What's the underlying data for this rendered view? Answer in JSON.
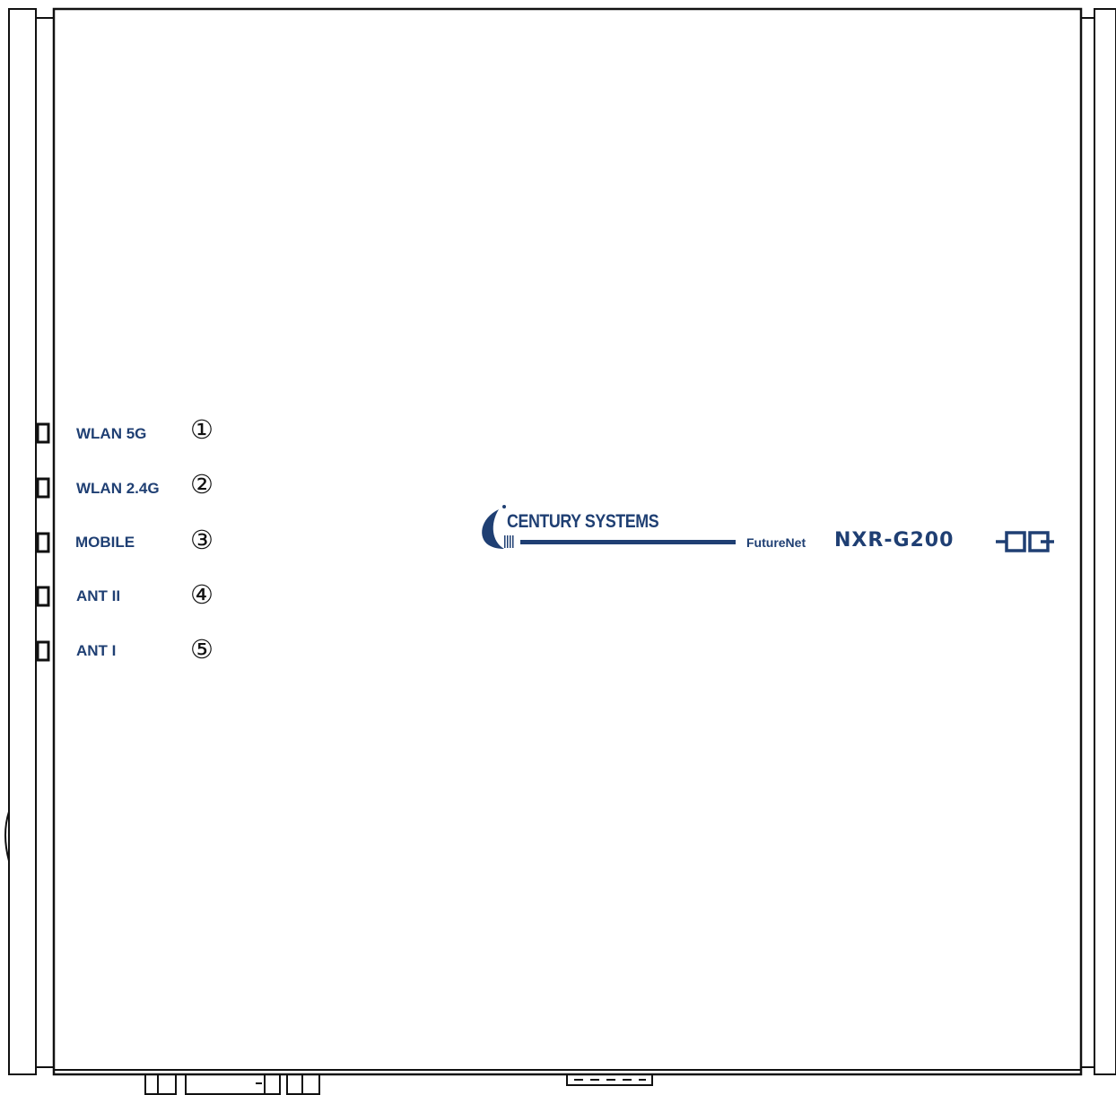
{
  "leds": [
    {
      "label": "WLAN 5G",
      "number": "①"
    },
    {
      "label": "WLAN 2.4G",
      "number": "②"
    },
    {
      "label": "MOBILE",
      "number": "③"
    },
    {
      "label": "ANT II",
      "number": "④"
    },
    {
      "label": "ANT I",
      "number": "⑤"
    }
  ],
  "branding": {
    "company": "CENTURY SYSTEMS",
    "series": "FutureNet",
    "model": "NXR-G200"
  },
  "colors": {
    "brand_blue": "#1f3f73",
    "outline": "#111111"
  },
  "icons": [
    "century-systems-logo-icon",
    "fn-logo-icon"
  ]
}
